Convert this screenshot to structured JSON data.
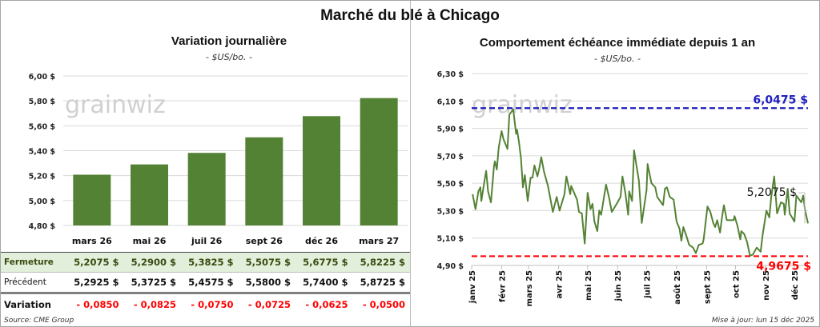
{
  "title": "Marché du blé à Chicago",
  "left": {
    "title": "Variation journalière",
    "unit": "- $US/bo. -",
    "watermark": "grainwiz",
    "table": {
      "rows": [
        {
          "label": "Fermeture",
          "values": [
            "5,2075  $",
            "5,2900  $",
            "5,3825  $",
            "5,5075  $",
            "5,6775  $",
            "5,8225  $"
          ]
        },
        {
          "label": "Précédent",
          "values": [
            "5,2925  $",
            "5,3725  $",
            "5,4575  $",
            "5,5800  $",
            "5,7400  $",
            "5,8725  $"
          ]
        },
        {
          "label": "Variation",
          "values": [
            "- 0,0850",
            "- 0,0825",
            "- 0,0750",
            "- 0,0725",
            "- 0,0625",
            "- 0,0500"
          ]
        }
      ]
    },
    "source": "Source: CME Group"
  },
  "right": {
    "title": "Comportement échéance immédiate depuis 1 an",
    "unit": "- $US/bo. -",
    "watermark": "grainwiz",
    "updated": "Mise à jour: lun 15 déc 2025"
  },
  "colors": {
    "bar": "#548235",
    "line": "#548235",
    "max": "#1f1fbf",
    "min": "#ff0000",
    "variation": "#ff0000",
    "fermeture_bg": "#e2efda"
  },
  "chart_data": [
    {
      "type": "bar",
      "title": "Variation journalière",
      "ylabel": "- $US/bo. -",
      "categories": [
        "mars 26",
        "mai 26",
        "juil 26",
        "sept 26",
        "déc 26",
        "mars 27"
      ],
      "values": [
        5.2075,
        5.29,
        5.3825,
        5.5075,
        5.6775,
        5.8225
      ],
      "ylim": [
        4.8,
        6.0
      ],
      "yticks": [
        "4,80 $",
        "5,00 $",
        "5,20 $",
        "5,40 $",
        "5,60 $",
        "5,80 $",
        "6,00 $"
      ],
      "grid": true
    },
    {
      "type": "line",
      "title": "Comportement échéance immédiate depuis 1 an",
      "ylabel": "- $US/bo. -",
      "ylim": [
        4.9,
        6.3
      ],
      "xlim": [
        "2025-01-01",
        "2025-12-15"
      ],
      "yticks": [
        "4,90 $",
        "5,10 $",
        "5,30 $",
        "5,50 $",
        "5,70 $",
        "5,90 $",
        "6,10 $",
        "6,30 $"
      ],
      "xticks": [
        "janv 25",
        "févr 25",
        "mars 25",
        "avr 25",
        "mai 25",
        "juin 25",
        "juil 25",
        "août 25",
        "sept 25",
        "oct 25",
        "nov 25",
        "déc 25"
      ],
      "grid": true,
      "max_line": {
        "value": 6.0475,
        "label": "6,0475  $"
      },
      "min_line": {
        "value": 4.9675,
        "label": "4,9675  $"
      },
      "last_label": "5,2075 $",
      "points": [
        [
          "2025-01-02",
          5.42
        ],
        [
          "2025-01-05",
          5.31
        ],
        [
          "2025-01-08",
          5.44
        ],
        [
          "2025-01-10",
          5.47
        ],
        [
          "2025-01-11",
          5.37
        ],
        [
          "2025-01-15",
          5.55
        ],
        [
          "2025-01-16",
          5.59
        ],
        [
          "2025-01-18",
          5.44
        ],
        [
          "2025-01-21",
          5.36
        ],
        [
          "2025-01-24",
          5.62
        ],
        [
          "2025-01-25",
          5.66
        ],
        [
          "2025-01-27",
          5.6
        ],
        [
          "2025-01-29",
          5.76
        ],
        [
          "2025-02-01",
          5.88
        ],
        [
          "2025-02-03",
          5.82
        ],
        [
          "2025-02-07",
          5.75
        ],
        [
          "2025-02-09",
          6.0
        ],
        [
          "2025-02-13",
          6.04
        ],
        [
          "2025-02-16",
          5.86
        ],
        [
          "2025-02-17",
          5.89
        ],
        [
          "2025-02-19",
          5.8
        ],
        [
          "2025-02-21",
          5.68
        ],
        [
          "2025-02-23",
          5.47
        ],
        [
          "2025-02-25",
          5.56
        ],
        [
          "2025-02-28",
          5.37
        ],
        [
          "2025-03-03",
          5.54
        ],
        [
          "2025-03-05",
          5.54
        ],
        [
          "2025-03-07",
          5.63
        ],
        [
          "2025-03-10",
          5.55
        ],
        [
          "2025-03-12",
          5.61
        ],
        [
          "2025-03-14",
          5.69
        ],
        [
          "2025-03-17",
          5.58
        ],
        [
          "2025-03-21",
          5.48
        ],
        [
          "2025-03-26",
          5.29
        ],
        [
          "2025-03-30",
          5.4
        ],
        [
          "2025-04-02",
          5.3
        ],
        [
          "2025-04-07",
          5.42
        ],
        [
          "2025-04-09",
          5.55
        ],
        [
          "2025-04-13",
          5.42
        ],
        [
          "2025-04-14",
          5.48
        ],
        [
          "2025-04-20",
          5.38
        ],
        [
          "2025-04-22",
          5.29
        ],
        [
          "2025-04-25",
          5.28
        ],
        [
          "2025-04-28",
          5.06
        ],
        [
          "2025-04-30",
          5.3
        ],
        [
          "2025-05-01",
          5.43
        ],
        [
          "2025-05-04",
          5.31
        ],
        [
          "2025-05-06",
          5.35
        ],
        [
          "2025-05-08",
          5.22
        ],
        [
          "2025-05-11",
          5.15
        ],
        [
          "2025-05-13",
          5.3
        ],
        [
          "2025-05-15",
          5.27
        ],
        [
          "2025-05-20",
          5.49
        ],
        [
          "2025-05-23",
          5.4
        ],
        [
          "2025-05-26",
          5.29
        ],
        [
          "2025-06-01",
          5.36
        ],
        [
          "2025-06-04",
          5.4
        ],
        [
          "2025-06-06",
          5.55
        ],
        [
          "2025-06-09",
          5.43
        ],
        [
          "2025-06-12",
          5.27
        ],
        [
          "2025-06-13",
          5.44
        ],
        [
          "2025-06-16",
          5.37
        ],
        [
          "2025-06-18",
          5.74
        ],
        [
          "2025-06-20",
          5.65
        ],
        [
          "2025-06-23",
          5.52
        ],
        [
          "2025-06-26",
          5.21
        ],
        [
          "2025-07-01",
          5.45
        ],
        [
          "2025-07-02",
          5.64
        ],
        [
          "2025-07-06",
          5.5
        ],
        [
          "2025-07-10",
          5.47
        ],
        [
          "2025-07-12",
          5.4
        ],
        [
          "2025-07-18",
          5.34
        ],
        [
          "2025-07-20",
          5.46
        ],
        [
          "2025-07-22",
          5.47
        ],
        [
          "2025-07-25",
          5.4
        ],
        [
          "2025-07-29",
          5.38
        ],
        [
          "2025-08-01",
          5.22
        ],
        [
          "2025-08-04",
          5.17
        ],
        [
          "2025-08-06",
          5.08
        ],
        [
          "2025-08-08",
          5.18
        ],
        [
          "2025-08-11",
          5.12
        ],
        [
          "2025-08-14",
          5.05
        ],
        [
          "2025-08-18",
          5.03
        ],
        [
          "2025-08-21",
          4.99
        ],
        [
          "2025-08-24",
          5.05
        ],
        [
          "2025-08-28",
          5.06
        ],
        [
          "2025-08-29",
          5.09
        ],
        [
          "2025-09-02",
          5.33
        ],
        [
          "2025-09-05",
          5.29
        ],
        [
          "2025-09-08",
          5.21
        ],
        [
          "2025-09-10",
          5.18
        ],
        [
          "2025-09-12",
          5.23
        ],
        [
          "2025-09-15",
          5.14
        ],
        [
          "2025-09-17",
          5.25
        ],
        [
          "2025-09-19",
          5.34
        ],
        [
          "2025-09-22",
          5.23
        ],
        [
          "2025-09-29",
          5.23
        ],
        [
          "2025-09-30",
          5.26
        ],
        [
          "2025-10-03",
          5.19
        ],
        [
          "2025-10-06",
          5.09
        ],
        [
          "2025-10-07",
          5.15
        ],
        [
          "2025-10-10",
          5.13
        ],
        [
          "2025-10-13",
          5.07
        ],
        [
          "2025-10-16",
          4.97
        ],
        [
          "2025-10-19",
          4.98
        ],
        [
          "2025-10-23",
          5.03
        ],
        [
          "2025-10-27",
          5.0
        ],
        [
          "2025-10-29",
          5.12
        ],
        [
          "2025-11-02",
          5.3
        ],
        [
          "2025-11-05",
          5.25
        ],
        [
          "2025-11-07",
          5.4
        ],
        [
          "2025-11-10",
          5.55
        ],
        [
          "2025-11-13",
          5.28
        ],
        [
          "2025-11-17",
          5.36
        ],
        [
          "2025-11-20",
          5.35
        ],
        [
          "2025-11-21",
          5.27
        ],
        [
          "2025-11-24",
          5.46
        ],
        [
          "2025-11-26",
          5.28
        ],
        [
          "2025-12-01",
          5.22
        ],
        [
          "2025-12-03",
          5.41
        ],
        [
          "2025-12-08",
          5.36
        ],
        [
          "2025-12-10",
          5.41
        ],
        [
          "2025-12-12",
          5.3
        ],
        [
          "2025-12-15",
          5.2075
        ]
      ]
    }
  ]
}
